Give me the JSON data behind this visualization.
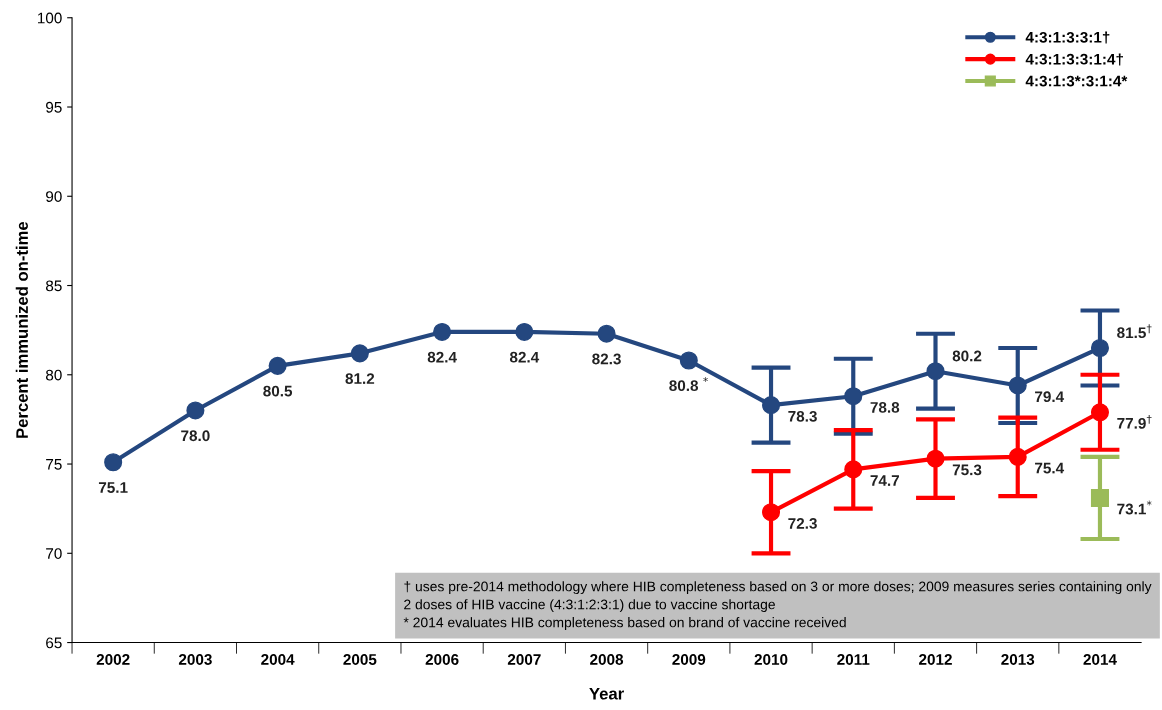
{
  "chart_data": {
    "type": "line",
    "xlabel": "Year",
    "ylabel": "Percent immunized on-time",
    "categories": [
      "2002",
      "2003",
      "2004",
      "2005",
      "2006",
      "2007",
      "2008",
      "2009",
      "2010",
      "2011",
      "2012",
      "2013",
      "2014"
    ],
    "ylim": [
      65,
      100
    ],
    "yticks": [
      65,
      70,
      75,
      80,
      85,
      90,
      95,
      100
    ],
    "grid": false,
    "legend": "top right",
    "line_style": "solid",
    "series": [
      {
        "name": "4:3:1:3:3:1†",
        "color": "#24477f",
        "marker": "circle",
        "values": [
          75.1,
          78.0,
          80.5,
          81.2,
          82.4,
          82.4,
          82.3,
          80.8,
          78.3,
          78.8,
          80.2,
          79.4,
          81.5
        ],
        "errors": [
          null,
          null,
          null,
          null,
          null,
          null,
          null,
          null,
          2.1,
          2.1,
          2.1,
          2.1,
          2.1
        ],
        "value_labels": [
          "75.1",
          "78.0",
          "80.5",
          "81.2",
          "82.4",
          "82.4",
          "82.3",
          "80.8 $^{*}$",
          "78.3",
          "78.8",
          "80.2",
          "79.4",
          "81.5$^{†}$"
        ]
      },
      {
        "name": "4:3:1:3:3:1:4†",
        "color": "#ff0000",
        "marker": "circle",
        "values": [
          null,
          null,
          null,
          null,
          null,
          null,
          null,
          null,
          72.3,
          74.7,
          75.3,
          75.4,
          77.9
        ],
        "errors": [
          null,
          null,
          null,
          null,
          null,
          null,
          null,
          null,
          2.3,
          2.2,
          2.2,
          2.2,
          2.1
        ],
        "value_labels": [
          null,
          null,
          null,
          null,
          null,
          null,
          null,
          null,
          "72.3",
          "74.7",
          "75.3",
          "75.4",
          "77.9$^{†}$"
        ]
      },
      {
        "name": "4:3:1:3*:3:1:4*",
        "color": "#9bbb59",
        "marker": "square",
        "values": [
          null,
          null,
          null,
          null,
          null,
          null,
          null,
          null,
          null,
          null,
          null,
          null,
          73.1
        ],
        "errors": [
          null,
          null,
          null,
          null,
          null,
          null,
          null,
          null,
          null,
          null,
          null,
          null,
          2.3
        ],
        "value_labels": [
          null,
          null,
          null,
          null,
          null,
          null,
          null,
          null,
          null,
          null,
          null,
          null,
          "73.1$^{*}$"
        ]
      }
    ],
    "annotations": [
      "† uses pre-2014 methodology where HIB completeness based on 3 or more doses; 2009 measures series containing only 2 doses of HIB vaccine (4:3:1:2:3:1) due to vaccine shortage\n* 2014 evaluates HIB completeness based on brand of vaccine received"
    ]
  }
}
